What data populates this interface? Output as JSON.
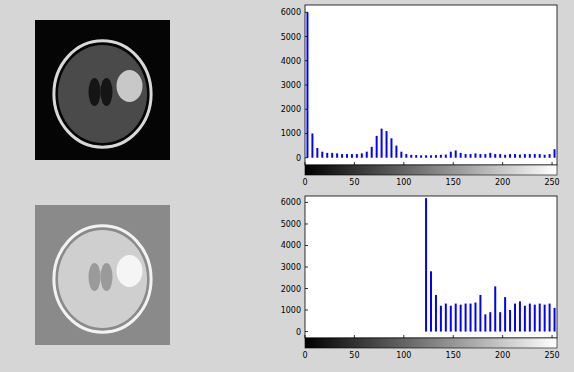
{
  "chart_data": [
    {
      "type": "histogram",
      "color": "#0000ff",
      "bins": [
        0,
        5,
        10,
        15,
        20,
        25,
        30,
        35,
        40,
        45,
        50,
        55,
        60,
        65,
        70,
        75,
        80,
        85,
        90,
        95,
        100,
        105,
        110,
        115,
        120,
        125,
        130,
        135,
        140,
        145,
        150,
        155,
        160,
        165,
        170,
        175,
        180,
        185,
        190,
        195,
        200,
        205,
        210,
        215,
        220,
        225,
        230,
        235,
        240,
        245,
        250,
        255
      ],
      "values": [
        6000,
        1000,
        400,
        250,
        200,
        200,
        180,
        150,
        150,
        150,
        150,
        180,
        250,
        450,
        900,
        1200,
        1100,
        800,
        500,
        250,
        150,
        120,
        110,
        100,
        100,
        100,
        110,
        120,
        130,
        250,
        300,
        200,
        150,
        150,
        180,
        150,
        150,
        200,
        150,
        150,
        120,
        150,
        150,
        130,
        150,
        150,
        150,
        150,
        120,
        150,
        350
      ],
      "xlim": [
        0,
        255
      ],
      "xticks": [
        0,
        50,
        100,
        150,
        200,
        250
      ],
      "ylim": [
        -300,
        6300
      ],
      "yticks": [
        0,
        1000,
        2000,
        3000,
        4000,
        5000,
        6000
      ]
    },
    {
      "type": "histogram",
      "color": "#0000ff",
      "bins": [
        0,
        5,
        10,
        15,
        20,
        25,
        30,
        35,
        40,
        45,
        50,
        55,
        60,
        65,
        70,
        75,
        80,
        85,
        90,
        95,
        100,
        105,
        110,
        115,
        120,
        125,
        130,
        135,
        140,
        145,
        150,
        155,
        160,
        165,
        170,
        175,
        180,
        185,
        190,
        195,
        200,
        205,
        210,
        215,
        220,
        225,
        230,
        235,
        240,
        245,
        250,
        255
      ],
      "values": [
        0,
        0,
        0,
        0,
        0,
        0,
        0,
        0,
        0,
        0,
        0,
        0,
        0,
        0,
        0,
        0,
        0,
        0,
        0,
        0,
        0,
        0,
        0,
        0,
        6200,
        2800,
        1700,
        1200,
        1300,
        1200,
        1300,
        1250,
        1300,
        1300,
        1350,
        1700,
        800,
        900,
        2100,
        900,
        1600,
        1000,
        1300,
        1400,
        1200,
        1300,
        1250,
        1300,
        1250,
        1300,
        1100
      ],
      "xlim": [
        0,
        255
      ],
      "xticks": [
        0,
        50,
        100,
        150,
        200,
        250
      ],
      "ylim": [
        -300,
        6300
      ],
      "yticks": [
        0,
        1000,
        2000,
        3000,
        4000,
        5000,
        6000
      ]
    }
  ]
}
